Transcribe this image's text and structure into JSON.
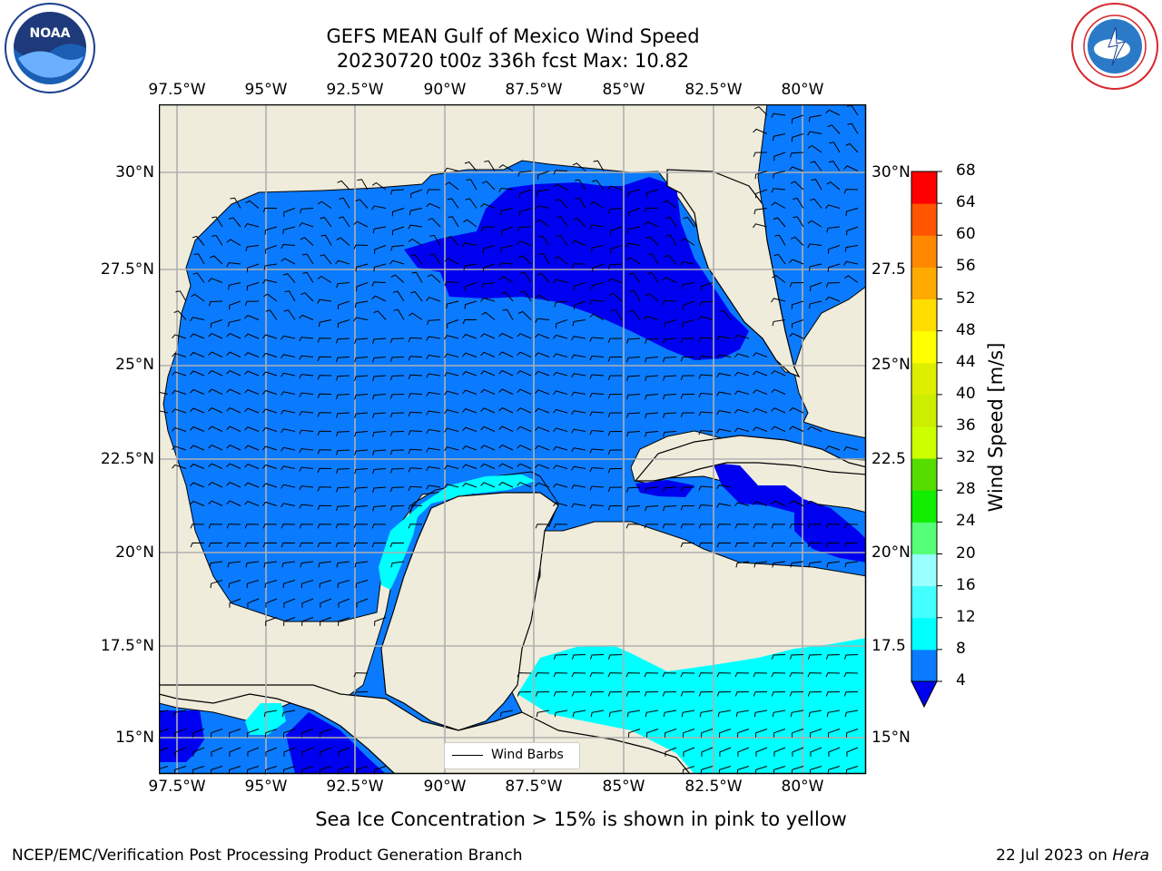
{
  "title": {
    "line1": "GEFS MEAN Gulf of Mexico Wind Speed",
    "line2": "20230720 t00z 336h fcst   Max: 10.82"
  },
  "subtitle": "Sea Ice Concentration > 15% is shown in pink to yellow",
  "footer": {
    "left": "NCEP/EMC/Verification Post Processing Product Generation Branch",
    "date": "22 Jul 2023 on ",
    "machine": "Hera"
  },
  "map": {
    "lon_labels": [
      "97.5°W",
      "95°W",
      "92.5°W",
      "90°W",
      "87.5°W",
      "85°W",
      "82.5°W",
      "80°W"
    ],
    "lat_labels": [
      "30°N",
      "27.5°N",
      "25°N",
      "22.5°N",
      "20°N",
      "17.5°N",
      "15°N"
    ],
    "lat_labels_right": [
      "30°N",
      "27.5",
      "25°N",
      "22.5",
      "20°N",
      "17.5",
      "15°N"
    ],
    "lon_range": [
      -98,
      -78.2
    ],
    "lat_range": [
      14,
      31.6
    ],
    "colors": {
      "land": "#efecdc",
      "level_4_8": "#0a7bff",
      "level_below_4": "#0000f0",
      "level_8_12": "#00ffff"
    }
  },
  "legend": {
    "label": "Wind Barbs"
  },
  "colorbar": {
    "label": "Wind Speed [m/s]",
    "ticks": [
      "4",
      "8",
      "12",
      "16",
      "20",
      "24",
      "28",
      "32",
      "36",
      "40",
      "44",
      "48",
      "52",
      "56",
      "60",
      "64",
      "68"
    ],
    "colors": [
      "#0a7bff",
      "#00ffff",
      "#44ffff",
      "#99ffff",
      "#55ff77",
      "#11ee00",
      "#55dd00",
      "#ccff00",
      "#ccee00",
      "#ddee00",
      "#ffff00",
      "#ffdd00",
      "#ffaa00",
      "#ff8800",
      "#ff5500",
      "#ff0000"
    ],
    "under_color": "#0000f0"
  },
  "logos": {
    "left": "noaa-logo",
    "right": "nws-logo"
  }
}
